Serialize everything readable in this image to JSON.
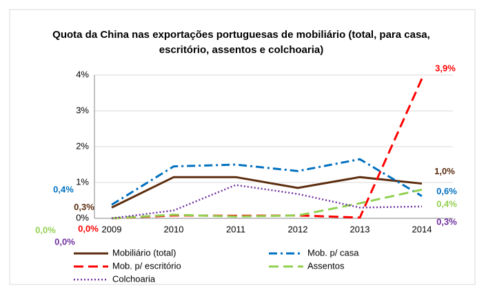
{
  "chart_data": {
    "type": "line",
    "title": "Quota da China nas exportações portuguesas de mobiliário (total, para casa,  escritório, assentos e colchoaria)",
    "categories": [
      "2009",
      "2010",
      "2011",
      "2012",
      "2013",
      "2014"
    ],
    "ylim": [
      0,
      4
    ],
    "yticks": [
      {
        "value": 0,
        "label": "0%"
      },
      {
        "value": 1,
        "label": "1%"
      },
      {
        "value": 2,
        "label": "2%"
      },
      {
        "value": 3,
        "label": "3%"
      },
      {
        "value": 4,
        "label": "4%"
      }
    ],
    "grid": true,
    "legend": "bottom",
    "series": [
      {
        "name": "Mobiliário (total)",
        "color": "#5c2d0e",
        "values": [
          0.3,
          1.15,
          1.15,
          0.85,
          1.15,
          0.97
        ],
        "value_labels": [
          "0,3%",
          null,
          null,
          null,
          null,
          "1,0%"
        ]
      },
      {
        "name": "Mob. p/ casa",
        "color": "#0070c0",
        "values": [
          0.38,
          1.45,
          1.5,
          1.32,
          1.65,
          0.62
        ],
        "value_labels": [
          "0,4%",
          null,
          null,
          null,
          null,
          "0,6%"
        ]
      },
      {
        "name": "Mob. p/ escritório",
        "color": "#ff0000",
        "values": [
          0.0,
          0.08,
          0.07,
          0.08,
          0.02,
          3.9
        ],
        "value_labels": [
          "0,0%",
          null,
          null,
          null,
          null,
          "3,9%"
        ]
      },
      {
        "name": "Assentos",
        "color": "#92d050",
        "values": [
          0.0,
          0.1,
          0.05,
          0.08,
          0.42,
          0.8
        ],
        "value_labels": [
          "0,0%",
          null,
          null,
          null,
          null,
          null
        ]
      },
      {
        "name": "Colchoaria",
        "color": "#7030a0",
        "values": [
          0.0,
          0.22,
          0.93,
          0.68,
          0.3,
          0.33
        ],
        "value_labels": [
          "0,0%",
          null,
          null,
          null,
          null,
          "0,3%"
        ]
      }
    ],
    "annotations": [
      {
        "text": "0,4%",
        "color": "#92d050"
      }
    ]
  }
}
